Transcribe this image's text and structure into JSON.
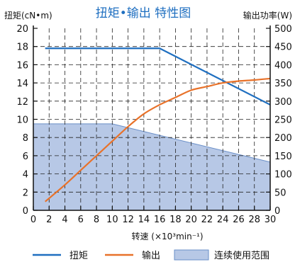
{
  "chart_data": {
    "type": "line",
    "title": "扭矩•输出 特性图",
    "xlabel": "转速 (×10³min⁻¹)",
    "ylabel_left": "扭矩(cN•m)",
    "ylabel_right": "输出功率(W)",
    "xlim": [
      0,
      30
    ],
    "ylim_left": [
      0,
      20
    ],
    "ylim_right": [
      0,
      500
    ],
    "xticks": [
      0,
      2,
      4,
      6,
      8,
      10,
      12,
      14,
      16,
      18,
      20,
      22,
      24,
      26,
      28,
      30
    ],
    "yticks_left": [
      0,
      2,
      4,
      6,
      8,
      10,
      12,
      14,
      16,
      18,
      20
    ],
    "yticks_right": [
      0,
      50,
      100,
      150,
      200,
      250,
      300,
      350,
      400,
      450,
      500
    ],
    "grid": "dashed",
    "legend_position": "bottom",
    "series": [
      {
        "name": "扭矩",
        "axis": "left",
        "color": "#1f6fc0",
        "x": [
          1.5,
          16,
          30
        ],
        "y": [
          17.8,
          17.8,
          11.6
        ]
      },
      {
        "name": "输出",
        "axis": "right",
        "color": "#e8722a",
        "x": [
          1.5,
          4,
          6,
          8,
          10,
          12,
          14,
          16,
          18,
          20,
          22,
          24,
          26,
          28,
          30
        ],
        "y": [
          24,
          70,
          110,
          150,
          190,
          230,
          265,
          290,
          310,
          330,
          340,
          350,
          355,
          358,
          362
        ]
      },
      {
        "name": "连续使用范围",
        "type": "area",
        "axis": "left",
        "color": "#b7c8e6",
        "x": [
          0,
          10,
          30
        ],
        "y": [
          9.5,
          9.5,
          5.3
        ]
      }
    ]
  }
}
